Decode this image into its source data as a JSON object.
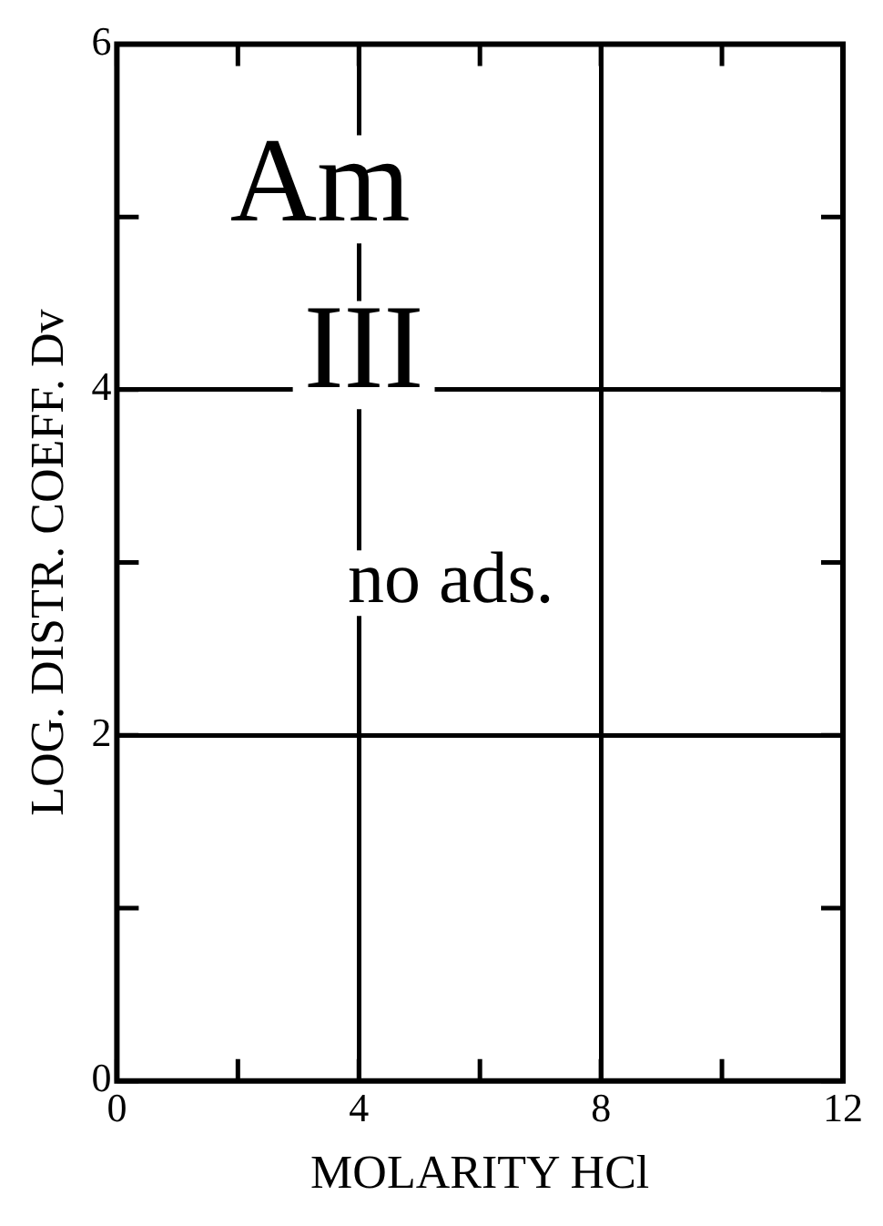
{
  "chart_data": {
    "type": "scatter",
    "xlabel": "MOLARITY HCl",
    "ylabel": "LOG. DISTR. COEFF. Dv",
    "xlim": [
      0,
      12
    ],
    "ylim": [
      0,
      6
    ],
    "xticks": [
      0,
      {
        "value": 2,
        "label": null
      },
      4,
      {
        "value": 6,
        "label": null
      },
      8,
      {
        "value": 10,
        "label": null
      },
      12
    ],
    "yticks": [
      0,
      {
        "value": 1,
        "label": null
      },
      2,
      {
        "value": 3,
        "label": null
      },
      4,
      {
        "value": 5,
        "label": null
      },
      6
    ],
    "grid": true,
    "legend": false,
    "annotations": [
      "Am",
      "III",
      "no ads."
    ]
  }
}
